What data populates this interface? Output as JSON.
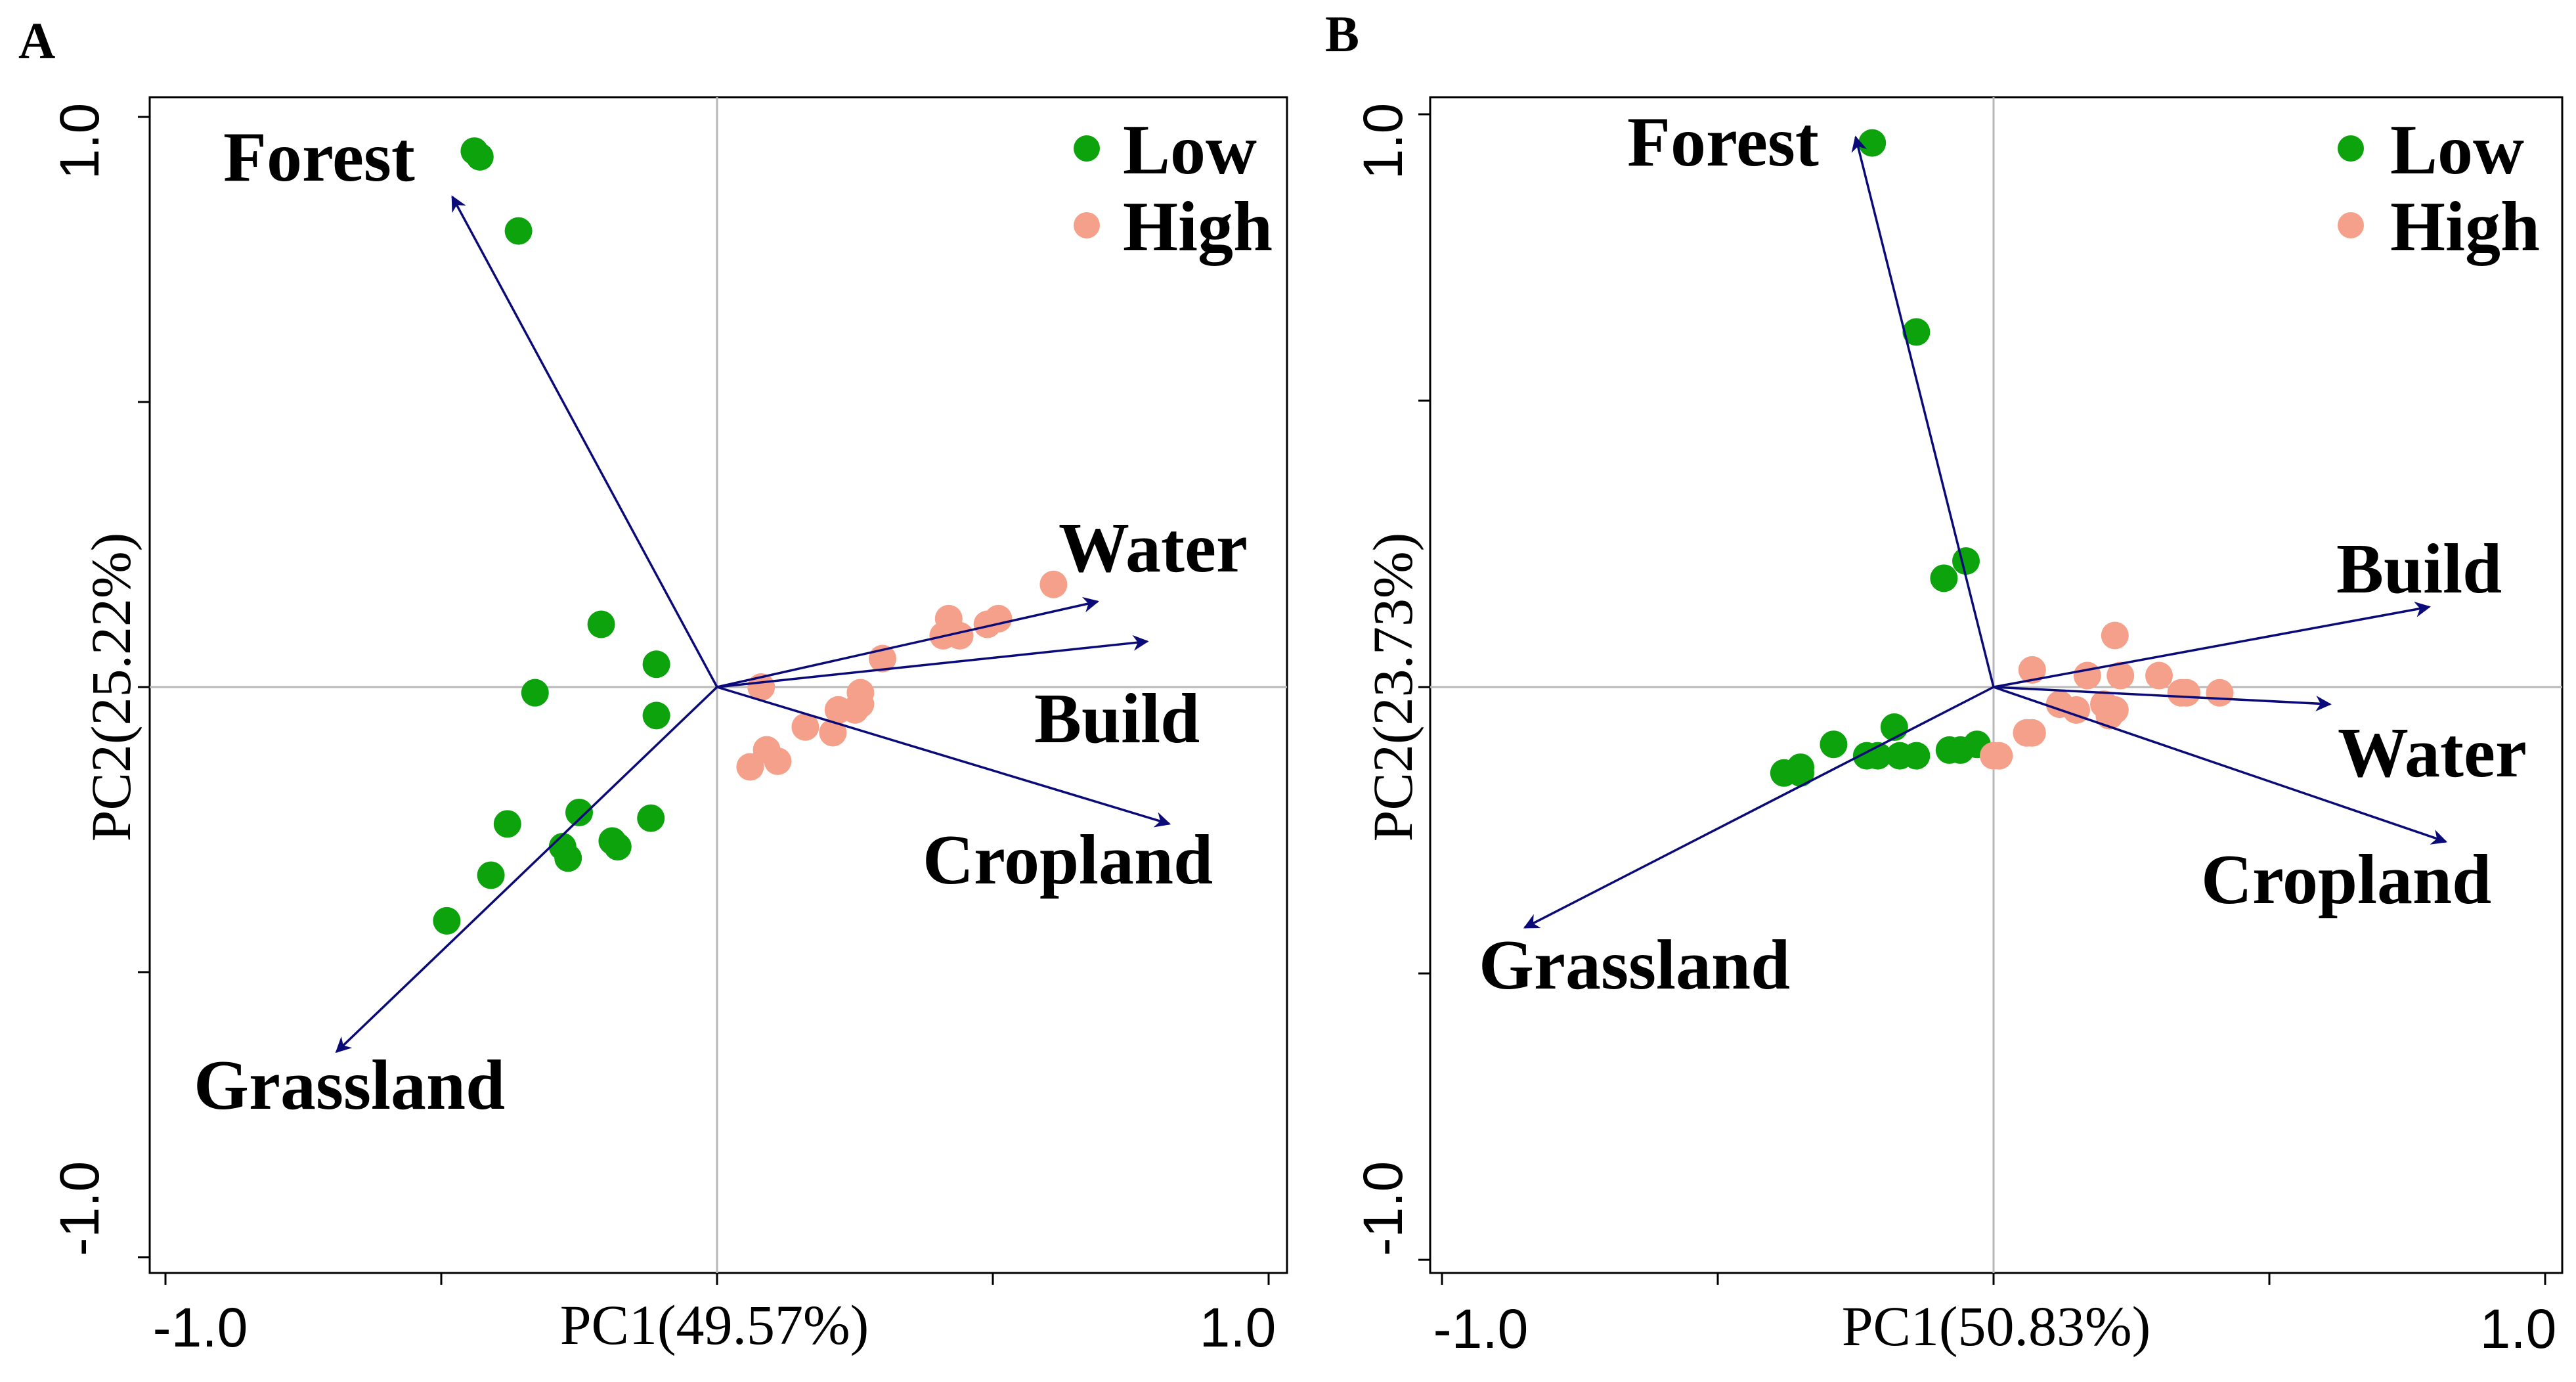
{
  "chart_data": [
    {
      "type": "scatter",
      "panel_label": "A",
      "xlabel": "PC1(49.57%)",
      "ylabel": "PC2(25.22%)",
      "xlim": [
        -1.0,
        1.0
      ],
      "ylim": [
        -1.0,
        1.0
      ],
      "x_tick_labels": [
        "-1.0",
        "1.0"
      ],
      "y_tick_labels": [
        "1.0",
        "-1.0"
      ],
      "zero_lines": true,
      "legend_position": "top-right",
      "legend": [
        {
          "name": "Low",
          "color": "#0ca30c"
        },
        {
          "name": "High",
          "color": "#f5a08a"
        }
      ],
      "loadings": [
        {
          "name": "Forest",
          "x": -0.48,
          "y": 0.86
        },
        {
          "name": "Water",
          "x": 0.69,
          "y": 0.15
        },
        {
          "name": "Build",
          "x": 0.78,
          "y": 0.08
        },
        {
          "name": "Cropland",
          "x": 0.82,
          "y": -0.24
        },
        {
          "name": "Grassland",
          "x": -0.69,
          "y": -0.64
        }
      ],
      "series": [
        {
          "name": "Low",
          "points": [
            [
              -0.44,
              0.94
            ],
            [
              -0.43,
              0.93
            ],
            [
              -0.36,
              0.8
            ],
            [
              -0.21,
              0.11
            ],
            [
              -0.33,
              -0.01
            ],
            [
              -0.11,
              0.04
            ],
            [
              -0.11,
              -0.05
            ],
            [
              -0.12,
              -0.23
            ],
            [
              -0.25,
              -0.22
            ],
            [
              -0.19,
              -0.27
            ],
            [
              -0.18,
              -0.28
            ],
            [
              -0.28,
              -0.28
            ],
            [
              -0.27,
              -0.3
            ],
            [
              -0.38,
              -0.24
            ],
            [
              -0.41,
              -0.33
            ],
            [
              -0.49,
              -0.41
            ]
          ]
        },
        {
          "name": "High",
          "points": [
            [
              0.61,
              0.18
            ],
            [
              0.51,
              0.12
            ],
            [
              0.49,
              0.11
            ],
            [
              0.42,
              0.12
            ],
            [
              0.41,
              0.09
            ],
            [
              0.44,
              0.09
            ],
            [
              0.3,
              0.05
            ],
            [
              0.08,
              0.0
            ],
            [
              0.26,
              -0.01
            ],
            [
              0.26,
              -0.03
            ],
            [
              0.22,
              -0.04
            ],
            [
              0.25,
              -0.04
            ],
            [
              0.16,
              -0.07
            ],
            [
              0.21,
              -0.08
            ],
            [
              0.09,
              -0.11
            ],
            [
              0.11,
              -0.13
            ],
            [
              0.06,
              -0.14
            ]
          ]
        }
      ]
    },
    {
      "type": "scatter",
      "panel_label": "B",
      "xlabel": "PC1(50.83%)",
      "ylabel": "PC2(23.73%)",
      "xlim": [
        -1.0,
        1.0
      ],
      "ylim": [
        -1.0,
        1.0
      ],
      "x_tick_labels": [
        "-1.0",
        "1.0"
      ],
      "y_tick_labels": [
        "1.0",
        "-1.0"
      ],
      "zero_lines": true,
      "legend_position": "top-right",
      "legend": [
        {
          "name": "Low",
          "color": "#0ca30c"
        },
        {
          "name": "High",
          "color": "#f5a08a"
        }
      ],
      "loadings": [
        {
          "name": "Forest",
          "x": -0.25,
          "y": 0.96
        },
        {
          "name": "Build",
          "x": 0.79,
          "y": 0.14
        },
        {
          "name": "Water",
          "x": 0.61,
          "y": -0.03
        },
        {
          "name": "Cropland",
          "x": 0.82,
          "y": -0.27
        },
        {
          "name": "Grassland",
          "x": -0.85,
          "y": -0.42
        }
      ],
      "series": [
        {
          "name": "Low",
          "points": [
            [
              -0.22,
              0.95
            ],
            [
              -0.14,
              0.62
            ],
            [
              -0.05,
              0.22
            ],
            [
              -0.09,
              0.19
            ],
            [
              -0.18,
              -0.07
            ],
            [
              -0.29,
              -0.1
            ],
            [
              -0.23,
              -0.12
            ],
            [
              -0.21,
              -0.12
            ],
            [
              -0.17,
              -0.12
            ],
            [
              -0.14,
              -0.12
            ],
            [
              -0.08,
              -0.11
            ],
            [
              -0.06,
              -0.11
            ],
            [
              -0.03,
              -0.1
            ],
            [
              -0.35,
              -0.14
            ],
            [
              -0.35,
              -0.15
            ],
            [
              -0.38,
              -0.15
            ]
          ]
        },
        {
          "name": "High",
          "points": [
            [
              0.22,
              0.09
            ],
            [
              0.07,
              0.03
            ],
            [
              0.17,
              0.02
            ],
            [
              0.23,
              0.02
            ],
            [
              0.3,
              0.02
            ],
            [
              0.34,
              -0.01
            ],
            [
              0.35,
              -0.01
            ],
            [
              0.41,
              -0.01
            ],
            [
              0.12,
              -0.03
            ],
            [
              0.2,
              -0.03
            ],
            [
              0.22,
              -0.04
            ],
            [
              0.15,
              -0.04
            ],
            [
              0.07,
              -0.08
            ],
            [
              0.06,
              -0.08
            ],
            [
              0.01,
              -0.12
            ],
            [
              0.0,
              -0.12
            ],
            [
              0.21,
              -0.05
            ]
          ]
        }
      ]
    }
  ]
}
